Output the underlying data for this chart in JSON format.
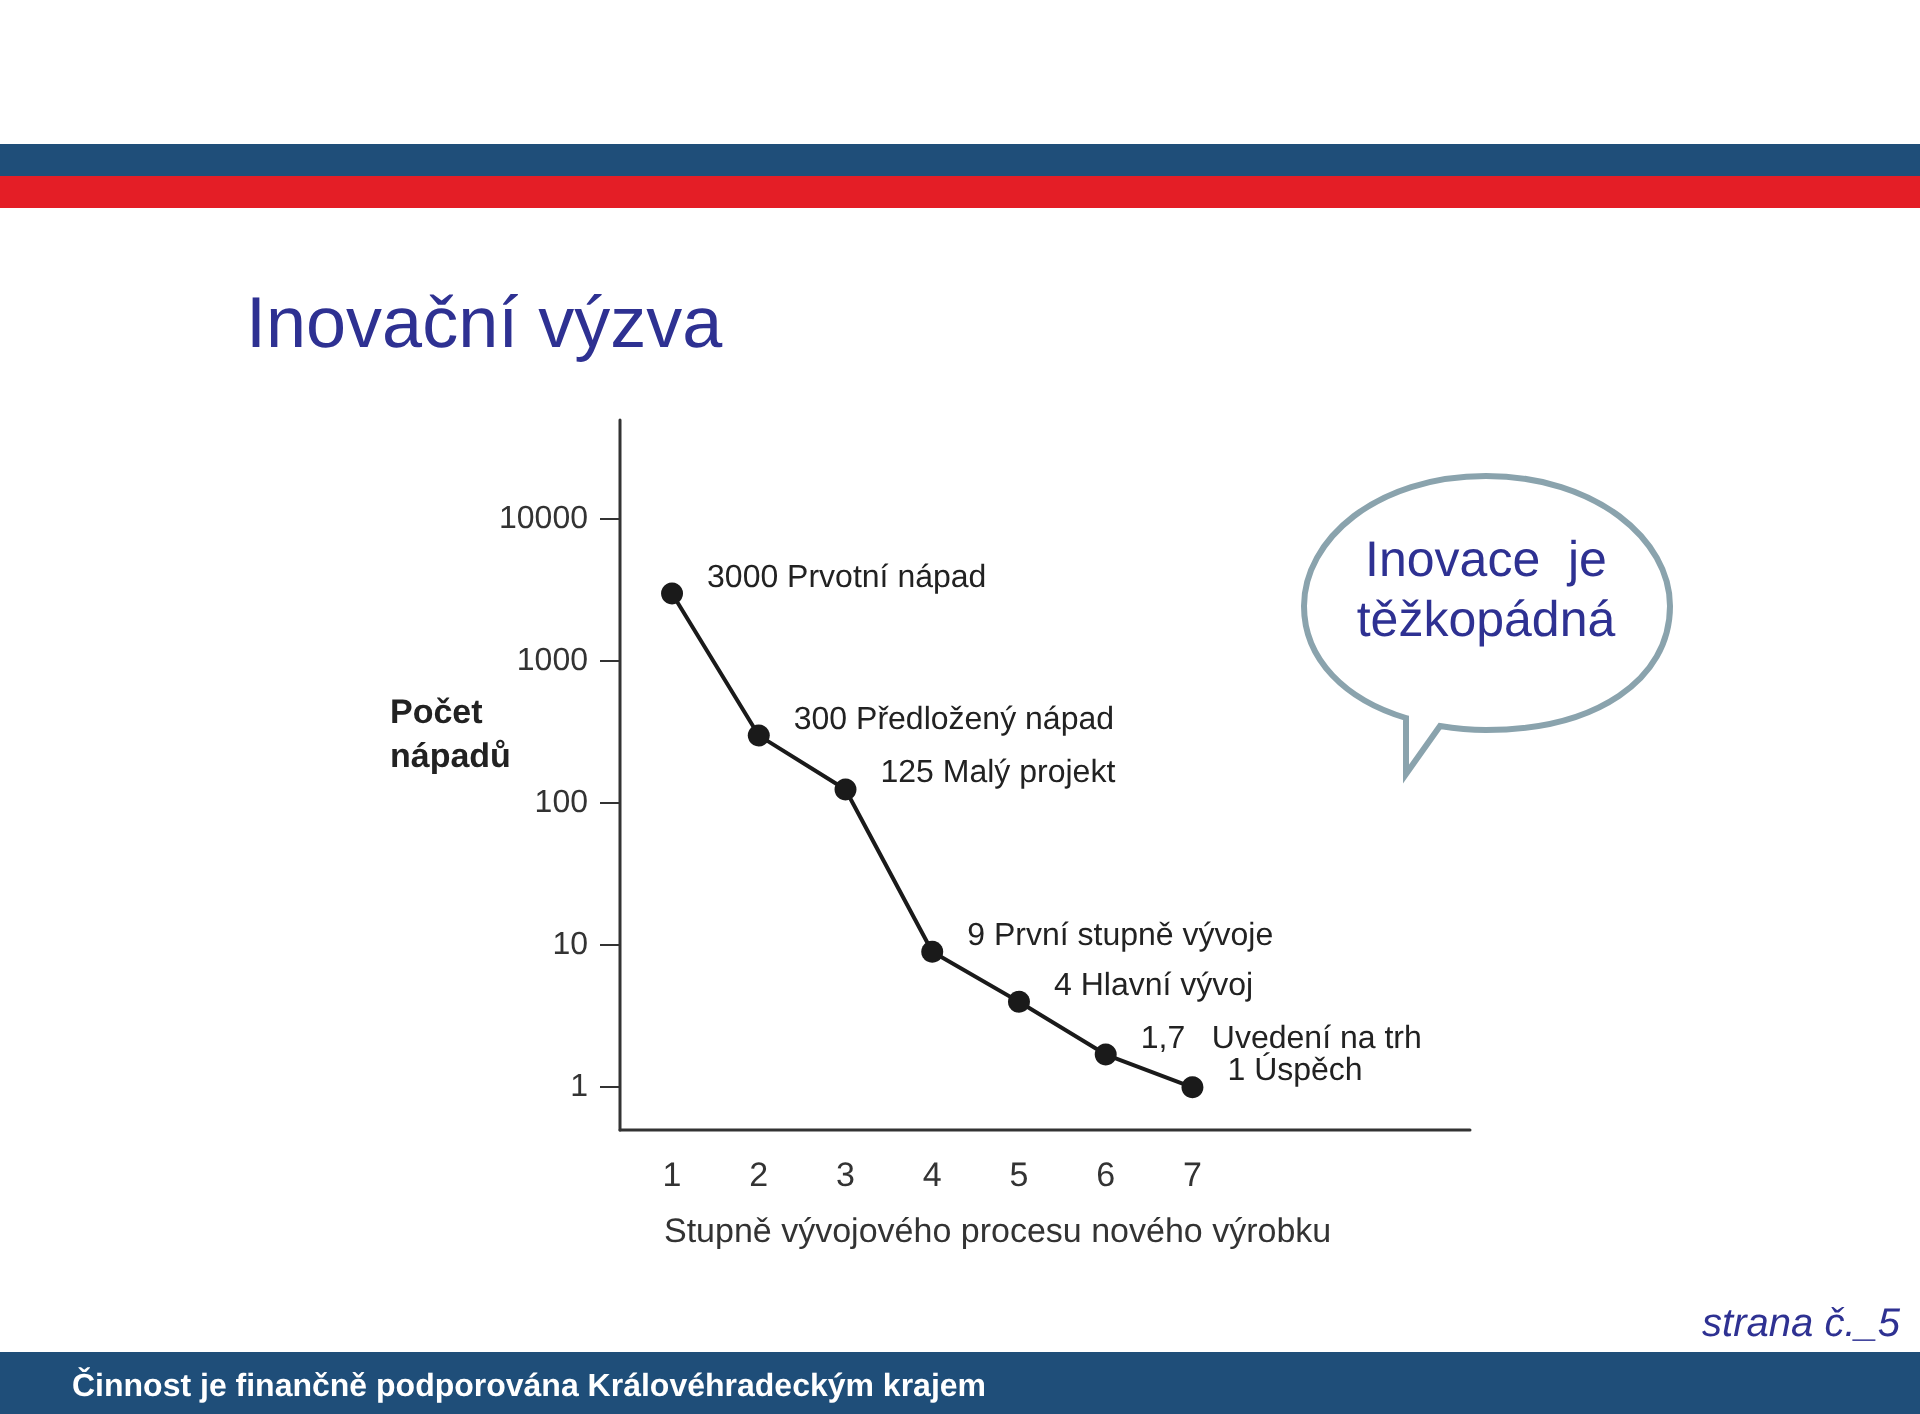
{
  "chart_data": {
    "type": "line",
    "title": "Inovační výzva",
    "xlabel": "Stupně vývojového procesu nového výrobku",
    "ylabel": "Počet\nnápadů",
    "x": [
      1,
      2,
      3,
      4,
      5,
      6,
      7
    ],
    "values": [
      3000,
      300,
      125,
      9,
      4,
      1.7,
      1
    ],
    "value_labels": [
      "3000 Prvotní nápad",
      "300 Předložený nápad",
      "125 Malý projekt",
      "9 První stupně vývoje",
      "4 Hlavní vývoj",
      "1,7   Uvedení na trh",
      "1 Úspěch"
    ],
    "color": "#1a1a1a",
    "marker": "circle",
    "log": "y",
    "xlim": [
      0.4,
      10.2
    ],
    "xticks": [
      1,
      2,
      3,
      4,
      5,
      6,
      7
    ],
    "ylim": [
      0.5,
      50000
    ],
    "yticks": [
      1,
      10,
      100,
      1000,
      10000
    ],
    "annotations": [
      "Inovace  je\ntěžkopádná",
      "strana č._5",
      "Činnost je finančně podporována Královéhradeckým krajem"
    ]
  }
}
